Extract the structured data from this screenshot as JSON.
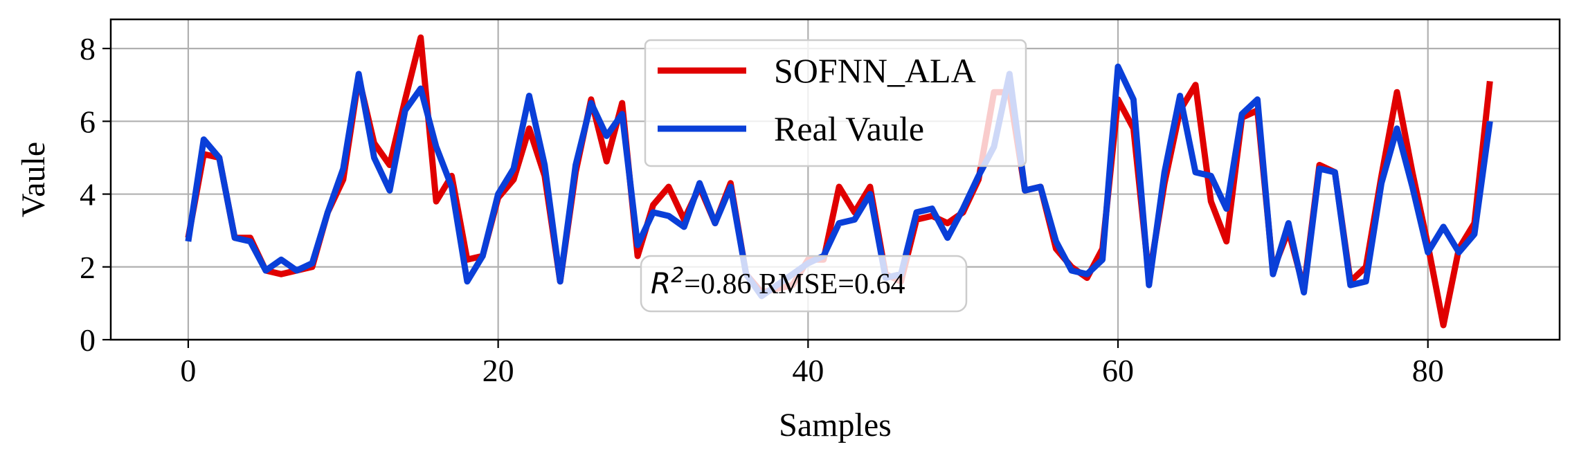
{
  "chart_data": {
    "type": "line",
    "title": "",
    "xlabel": "Samples",
    "ylabel": "Vaule",
    "xlim": [
      -5,
      88.5
    ],
    "ylim": [
      0,
      8.8
    ],
    "xticks": [
      0,
      20,
      40,
      60,
      80
    ],
    "yticks": [
      0,
      2,
      4,
      6,
      8
    ],
    "grid": true,
    "legend_position": "upper-center",
    "annotation": {
      "prefix": "R",
      "superscript": "2",
      "text": "=0.86 RMSE=0.64",
      "position": "lower-center"
    },
    "series": [
      {
        "name": "SOFNN_ALA",
        "color": "#e00000",
        "x": [
          0,
          1,
          2,
          3,
          4,
          5,
          6,
          7,
          8,
          9,
          10,
          11,
          12,
          13,
          14,
          15,
          16,
          17,
          18,
          19,
          20,
          21,
          22,
          23,
          24,
          25,
          26,
          27,
          28,
          29,
          30,
          31,
          32,
          33,
          34,
          35,
          36,
          37,
          38,
          39,
          40,
          41,
          42,
          43,
          44,
          45,
          46,
          47,
          48,
          49,
          50,
          51,
          52,
          53,
          54,
          55,
          56,
          57,
          58,
          59,
          60,
          61,
          62,
          63,
          64,
          65,
          66,
          67,
          68,
          69,
          70,
          71,
          72,
          73,
          74,
          75,
          76,
          77,
          78,
          79,
          80,
          81,
          82,
          83,
          84
        ],
        "values": [
          2.8,
          5.1,
          5.0,
          2.8,
          2.8,
          1.9,
          1.8,
          1.9,
          2.0,
          3.5,
          4.4,
          7.2,
          5.4,
          4.8,
          6.6,
          8.3,
          3.8,
          4.5,
          2.2,
          2.3,
          3.9,
          4.4,
          5.8,
          4.5,
          1.6,
          4.6,
          6.6,
          4.9,
          6.5,
          2.3,
          3.7,
          4.2,
          3.3,
          4.2,
          3.2,
          4.3,
          1.8,
          1.3,
          1.4,
          1.5,
          2.2,
          2.2,
          4.2,
          3.5,
          4.2,
          1.8,
          1.6,
          3.3,
          3.4,
          3.2,
          3.5,
          4.4,
          6.8,
          6.8,
          4.1,
          4.2,
          2.5,
          2.0,
          1.7,
          2.5,
          6.6,
          5.8,
          1.7,
          4.3,
          6.3,
          7.0,
          3.8,
          2.7,
          6.1,
          6.3,
          1.9,
          3.0,
          1.4,
          4.8,
          4.6,
          1.6,
          2.0,
          4.5,
          6.8,
          4.6,
          2.6,
          0.4,
          2.5,
          3.2,
          7.1
        ]
      },
      {
        "name": "Real Vaule",
        "color": "#0a3fd8",
        "x": [
          0,
          1,
          2,
          3,
          4,
          5,
          6,
          7,
          8,
          9,
          10,
          11,
          12,
          13,
          14,
          15,
          16,
          17,
          18,
          19,
          20,
          21,
          22,
          23,
          24,
          25,
          26,
          27,
          28,
          29,
          30,
          31,
          32,
          33,
          34,
          35,
          36,
          37,
          38,
          39,
          40,
          41,
          42,
          43,
          44,
          45,
          46,
          47,
          48,
          49,
          50,
          51,
          52,
          53,
          54,
          55,
          56,
          57,
          58,
          59,
          60,
          61,
          62,
          63,
          64,
          65,
          66,
          67,
          68,
          69,
          70,
          71,
          72,
          73,
          74,
          75,
          76,
          77,
          78,
          79,
          80,
          81,
          82,
          83,
          84
        ],
        "values": [
          2.7,
          5.5,
          5.0,
          2.8,
          2.7,
          1.9,
          2.2,
          1.9,
          2.1,
          3.5,
          4.7,
          7.3,
          5.0,
          4.1,
          6.3,
          6.9,
          5.3,
          4.2,
          1.6,
          2.3,
          4.0,
          4.7,
          6.7,
          4.8,
          1.6,
          4.8,
          6.5,
          5.6,
          6.2,
          2.6,
          3.5,
          3.4,
          3.1,
          4.3,
          3.2,
          4.2,
          1.8,
          1.2,
          1.5,
          1.8,
          2.1,
          2.3,
          3.2,
          3.3,
          4.0,
          1.7,
          1.8,
          3.5,
          3.6,
          2.8,
          3.6,
          4.5,
          5.3,
          7.3,
          4.1,
          4.2,
          2.7,
          1.9,
          1.8,
          2.2,
          7.5,
          6.6,
          1.5,
          4.6,
          6.7,
          4.6,
          4.5,
          3.6,
          6.2,
          6.6,
          1.8,
          3.2,
          1.3,
          4.7,
          4.6,
          1.5,
          1.6,
          4.3,
          5.8,
          4.2,
          2.4,
          3.1,
          2.4,
          2.9,
          6.0
        ]
      }
    ]
  }
}
